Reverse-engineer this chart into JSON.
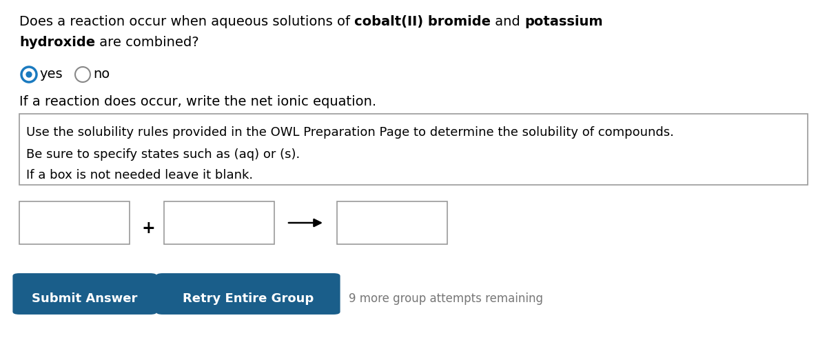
{
  "bg_color": "#ffffff",
  "text_color": "#000000",
  "gray_text_color": "#777777",
  "border_color": "#999999",
  "btn_color": "#1a5e8a",
  "btn_text_color": "#ffffff",
  "radio_selected_color": "#1a7abf",
  "radio_unselected_color": "#888888",
  "q_line1_plain1": "Does a reaction occur when aqueous solutions of ",
  "q_line1_bold1": "cobalt(II) bromide",
  "q_line1_plain2": " and ",
  "q_line1_bold2": "potassium",
  "q_line2_bold": "hydroxide",
  "q_line2_plain": " are combined?",
  "radio_yes": "yes",
  "radio_no": "no",
  "reaction_line": "If a reaction does occur, write the net ionic equation.",
  "box_line1": "Use the solubility rules provided in the OWL Preparation Page to determine the solubility of compounds.",
  "box_line2": "Be sure to specify states such as (aq) or (s).",
  "box_line3": "If a box is not needed leave it blank.",
  "btn1_text": "Submit Answer",
  "btn2_text": "Retry Entire Group",
  "remaining_text": "9 more group attempts remaining",
  "fig_width": 12.0,
  "fig_height": 4.9,
  "dpi": 100
}
